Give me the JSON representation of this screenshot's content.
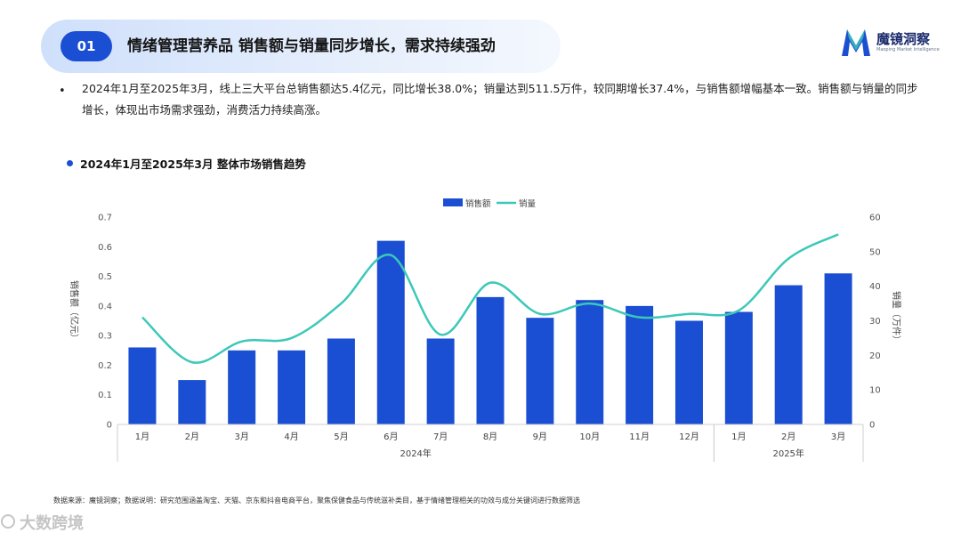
{
  "header": {
    "section_number": "01",
    "title": "情绪管理营养品 销售额与销量同步增长，需求持续强劲"
  },
  "brand": {
    "name": "魔镜洞察",
    "subtitle": "Maoping Market Intelligence"
  },
  "summary": {
    "bullet": "•",
    "text": "2024年1月至2025年3月，线上三大平台总销售额达5.4亿元，同比增长38.0%；销量达到511.5万件，较同期增长37.4%，与销售额增幅基本一致。销售额与销量的同步增长，体现出市场需求强劲，消费活力持续高涨。"
  },
  "chart_heading": "2024年1月至2025年3月 整体市场销售趋势",
  "source_note": "数据来源：魔镜洞察；数据说明：研究范围涵盖淘宝、天猫、京东和抖音电商平台，聚焦保健食品与传统滋补类目，基于情绪管理相关的功效与成分关键词进行数据筛选",
  "watermark": "大数跨境",
  "colors": {
    "accent": "#1a4fd3",
    "bar": "#1a4fd3",
    "line": "#3cc8b8"
  },
  "chart_data": {
    "type": "bar",
    "categories": [
      "1月",
      "2月",
      "3月",
      "4月",
      "5月",
      "6月",
      "7月",
      "8月",
      "9月",
      "10月",
      "11月",
      "12月",
      "1月",
      "2月",
      "3月"
    ],
    "groups": [
      {
        "label": "2024年",
        "start": 0,
        "end": 11
      },
      {
        "label": "2025年",
        "start": 12,
        "end": 14
      }
    ],
    "series": [
      {
        "name": "销售额",
        "type": "bar",
        "axis": "left",
        "values": [
          0.26,
          0.15,
          0.25,
          0.25,
          0.29,
          0.62,
          0.29,
          0.43,
          0.36,
          0.42,
          0.4,
          0.35,
          0.38,
          0.47,
          0.51
        ]
      },
      {
        "name": "销量",
        "type": "line",
        "axis": "right",
        "values": [
          31,
          18,
          24,
          25,
          35,
          49,
          26,
          41,
          32,
          35,
          31,
          32,
          33,
          48,
          55
        ]
      }
    ],
    "ylabel": "销售额（亿元）",
    "ylabel_right": "销量（万件）",
    "ylim": [
      0,
      0.7
    ],
    "ylim_right": [
      0,
      60
    ],
    "yticks": [
      "0",
      "0.1",
      "0.2",
      "0.3",
      "0.4",
      "0.5",
      "0.6",
      "0.7"
    ],
    "yticks_right": [
      "0",
      "10",
      "20",
      "30",
      "40",
      "50",
      "60"
    ],
    "legend_position": "top-center",
    "grid": false
  }
}
